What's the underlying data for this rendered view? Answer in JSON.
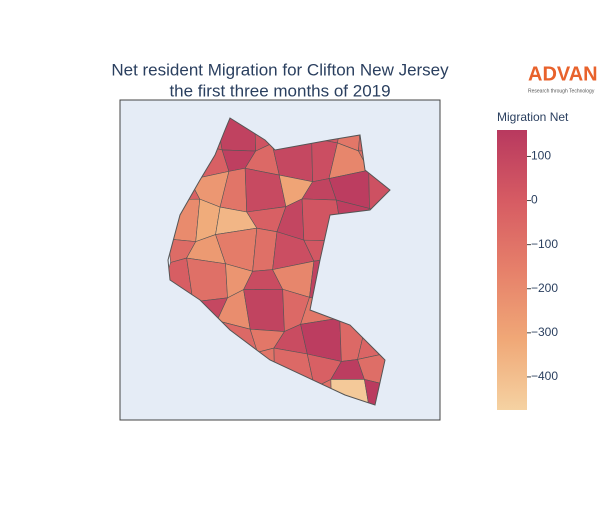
{
  "chart_data": {
    "type": "choropleth",
    "title": "Net resident Migration for Clifton New Jersey",
    "subtitle": "the first three months of 2019",
    "logo": {
      "text": "ADVAN",
      "tagline": "Research through Technology"
    },
    "colorbar_title": "Migration Net",
    "colorscale": [
      "#f5d2a2",
      "#f0a877",
      "#e6806a",
      "#d65b63",
      "#b8395f"
    ],
    "zlim": [
      -475,
      160
    ],
    "zticks": [
      100,
      0,
      {
        "value": -100,
        "label": "−100"
      },
      {
        "value": -200,
        "label": "−200"
      },
      {
        "value": -300,
        "label": "−300"
      },
      {
        "value": -400,
        "label": "−400"
      }
    ],
    "values": [
      -60,
      10,
      120,
      40,
      -80,
      20,
      -120,
      -40,
      -150,
      -20,
      130,
      -60,
      90,
      60,
      -180,
      -90,
      -30,
      -250,
      -110,
      80,
      -300,
      110,
      140,
      50,
      -200,
      -330,
      -370,
      -20,
      100,
      30,
      130,
      -50,
      -70,
      -260,
      -140,
      -90,
      60,
      20,
      -100,
      -10,
      -10,
      -90,
      -240,
      70,
      -180,
      120,
      -60,
      0,
      -40,
      90,
      -210,
      110,
      -60,
      -120,
      40,
      20,
      -80,
      -30,
      -60,
      -120,
      70,
      140,
      -60,
      -40,
      -20,
      -90,
      -40,
      -110,
      -60,
      -20,
      140,
      -80,
      -50,
      -70,
      -30,
      -100,
      -160,
      -90,
      -440,
      150
    ]
  }
}
